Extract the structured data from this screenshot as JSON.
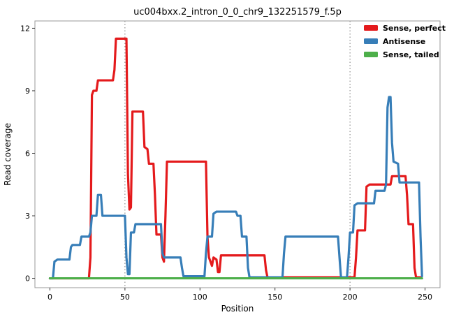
{
  "figure": {
    "background": "#ffffff",
    "panel_border_color": "#989898",
    "vline_color": "#7a7a7a",
    "tick_color": "#333333"
  },
  "chart_data": {
    "type": "line",
    "title": "uc004bxx.2_intron_0_0_chr9_132251579_f.5p",
    "xlabel": "Position",
    "ylabel": "Read coverage",
    "xlim": [
      -10,
      260
    ],
    "ylim": [
      -0.45,
      12.35
    ],
    "xticks": [
      0,
      50,
      100,
      150,
      200,
      250
    ],
    "yticks": [
      0,
      3,
      6,
      9,
      12
    ],
    "vlines": [
      50,
      200
    ],
    "vline_style": "dotted",
    "grid": false,
    "legend_position": "top-right-inside",
    "series": [
      {
        "name": "Sense, perfect",
        "color": "#e41a1c",
        "points": [
          [
            0,
            0
          ],
          [
            26,
            0
          ],
          [
            27,
            1
          ],
          [
            28,
            8.8
          ],
          [
            29,
            9
          ],
          [
            31,
            9
          ],
          [
            32,
            9.5
          ],
          [
            42,
            9.5
          ],
          [
            43,
            10
          ],
          [
            44,
            11.5
          ],
          [
            51,
            11.5
          ],
          [
            52,
            5
          ],
          [
            53,
            3.3
          ],
          [
            54,
            3.4
          ],
          [
            55,
            8
          ],
          [
            62,
            8
          ],
          [
            63,
            6.3
          ],
          [
            65,
            6.2
          ],
          [
            66,
            5.5
          ],
          [
            69,
            5.5
          ],
          [
            70,
            4
          ],
          [
            71,
            2.1
          ],
          [
            74,
            2.1
          ],
          [
            75,
            1
          ],
          [
            76,
            0.8
          ],
          [
            77,
            3
          ],
          [
            78,
            5.6
          ],
          [
            104,
            5.6
          ],
          [
            105,
            2
          ],
          [
            106,
            1
          ],
          [
            108,
            0.6
          ],
          [
            109,
            1
          ],
          [
            111,
            0.9
          ],
          [
            112,
            0.3
          ],
          [
            113,
            0.3
          ],
          [
            114,
            1.1
          ],
          [
            143,
            1.1
          ],
          [
            144,
            0.4
          ],
          [
            145,
            0.05
          ],
          [
            203,
            0.05
          ],
          [
            204,
            1
          ],
          [
            205,
            2.3
          ],
          [
            210,
            2.3
          ],
          [
            211,
            4.4
          ],
          [
            213,
            4.5
          ],
          [
            227,
            4.5
          ],
          [
            228,
            4.9
          ],
          [
            237,
            4.9
          ],
          [
            238,
            4
          ],
          [
            239,
            2.6
          ],
          [
            242,
            2.6
          ],
          [
            243,
            0.5
          ],
          [
            244,
            0.05
          ],
          [
            247,
            0.05
          ]
        ]
      },
      {
        "name": "Antisense",
        "color": "#377eb8",
        "points": [
          [
            0,
            0
          ],
          [
            2,
            0
          ],
          [
            3,
            0.8
          ],
          [
            5,
            0.9
          ],
          [
            13,
            0.9
          ],
          [
            14,
            1.5
          ],
          [
            15,
            1.6
          ],
          [
            20,
            1.6
          ],
          [
            21,
            2
          ],
          [
            26,
            2
          ],
          [
            27,
            2.2
          ],
          [
            28,
            3
          ],
          [
            31,
            3
          ],
          [
            32,
            4
          ],
          [
            34,
            4
          ],
          [
            35,
            3
          ],
          [
            50,
            3
          ],
          [
            51,
            1
          ],
          [
            52,
            0.2
          ],
          [
            53,
            0.2
          ],
          [
            54,
            2.2
          ],
          [
            56,
            2.2
          ],
          [
            57,
            2.6
          ],
          [
            74,
            2.6
          ],
          [
            75,
            1.2
          ],
          [
            76,
            1
          ],
          [
            87,
            1
          ],
          [
            88,
            0.5
          ],
          [
            89,
            0.1
          ],
          [
            103,
            0.1
          ],
          [
            104,
            1.2
          ],
          [
            105,
            2
          ],
          [
            108,
            2
          ],
          [
            109,
            3.1
          ],
          [
            111,
            3.2
          ],
          [
            124,
            3.2
          ],
          [
            125,
            3
          ],
          [
            127,
            3
          ],
          [
            128,
            2
          ],
          [
            131,
            2
          ],
          [
            132,
            0.5
          ],
          [
            133,
            0.05
          ],
          [
            155,
            0.05
          ],
          [
            156,
            1.2
          ],
          [
            157,
            2
          ],
          [
            192,
            2
          ],
          [
            193,
            1
          ],
          [
            194,
            0.05
          ],
          [
            198,
            0.05
          ],
          [
            199,
            1
          ],
          [
            200,
            2.2
          ],
          [
            202,
            2.2
          ],
          [
            203,
            3.5
          ],
          [
            205,
            3.6
          ],
          [
            216,
            3.6
          ],
          [
            217,
            4.2
          ],
          [
            223,
            4.2
          ],
          [
            224,
            4.5
          ],
          [
            225,
            8.2
          ],
          [
            226,
            8.7
          ],
          [
            227,
            8.7
          ],
          [
            228,
            6.5
          ],
          [
            229,
            5.6
          ],
          [
            232,
            5.5
          ],
          [
            233,
            4.6
          ],
          [
            246,
            4.6
          ],
          [
            247,
            2
          ],
          [
            248,
            0.1
          ]
        ]
      },
      {
        "name": "Sense, tailed",
        "color": "#4daf4a",
        "points": [
          [
            0,
            0
          ],
          [
            248,
            0
          ]
        ]
      }
    ]
  }
}
